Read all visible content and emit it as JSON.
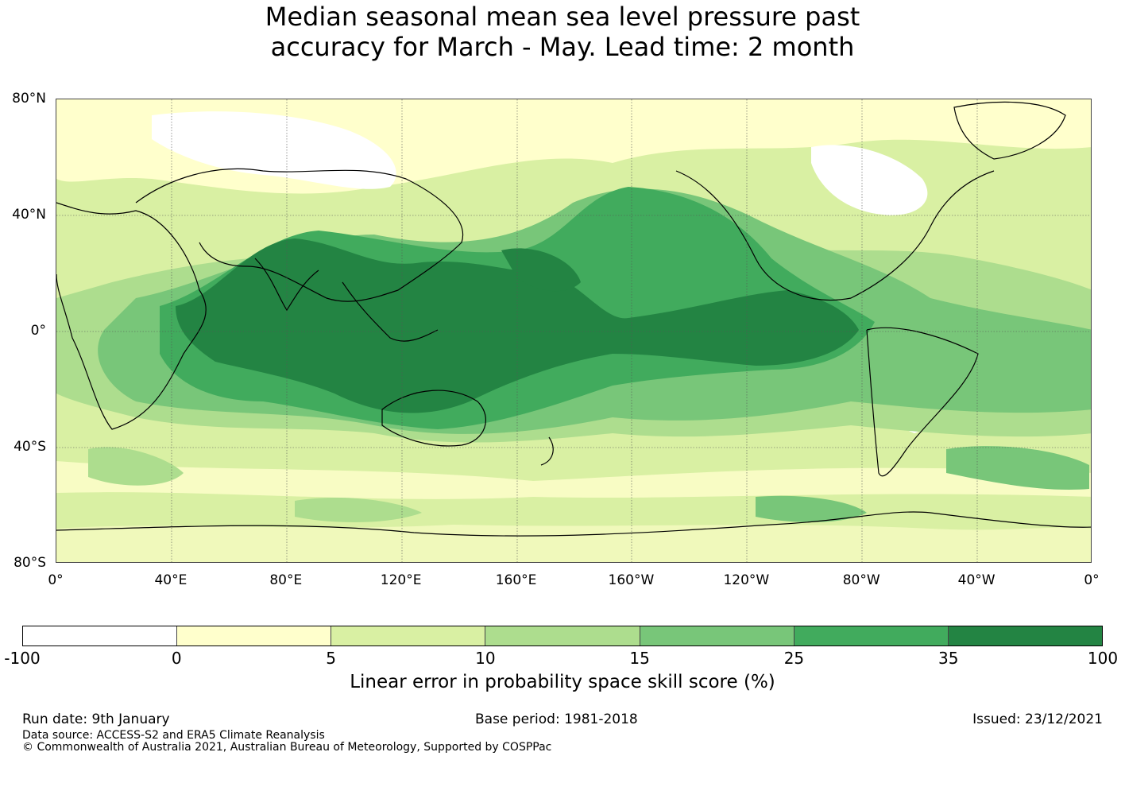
{
  "title": {
    "line1": "Median seasonal mean sea level pressure past",
    "line2": "accuracy for March - May. Lead time: 2 month"
  },
  "map": {
    "lat_labels": [
      "80°N",
      "40°N",
      "0°",
      "40°S",
      "80°S"
    ],
    "lon_labels": [
      "0°",
      "40°E",
      "80°E",
      "120°E",
      "160°E",
      "160°W",
      "120°W",
      "80°W",
      "40°W",
      "0°"
    ],
    "lat_values": [
      80,
      40,
      0,
      -40,
      -80
    ],
    "lon_values": [
      0,
      40,
      80,
      120,
      160,
      200,
      240,
      280,
      320,
      360
    ],
    "colors": {
      "ocean_base": "#d9f0a3",
      "land_base": "#ffffcc"
    }
  },
  "colorbar": {
    "ticks": [
      "-100",
      "0",
      "5",
      "10",
      "15",
      "25",
      "35",
      "100"
    ],
    "colors": [
      "#ffffff",
      "#ffffcc",
      "#d9f0a3",
      "#addd8e",
      "#78c679",
      "#41ab5d",
      "#238443"
    ],
    "label": "Linear error in probability space skill score (%)"
  },
  "footer": {
    "run_date": "Run date: 9th January",
    "base_period": "Base period: 1981-2018",
    "issued": "Issued: 23/12/2021",
    "data_source": "Data source: ACCESS-S2 and ERA5 Climate Reanalysis",
    "copyright": "© Commonwealth of Australia 2021, Australian Bureau of Meteorology, Supported by COSPPac"
  }
}
